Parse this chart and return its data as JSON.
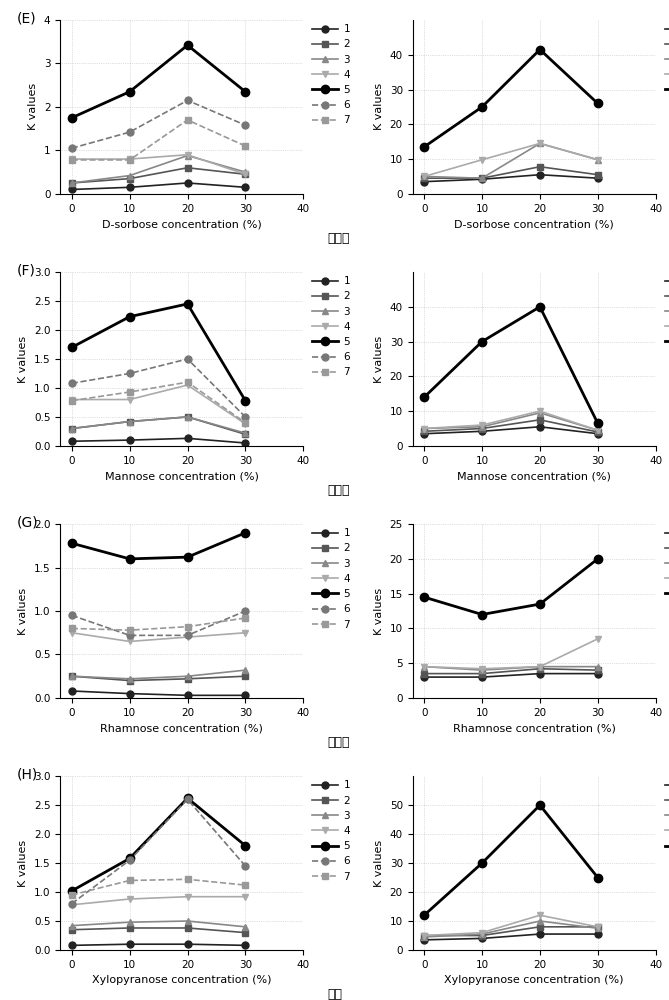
{
  "x": [
    0,
    10,
    20,
    30
  ],
  "panels": {
    "E_left": {
      "label": "(E)",
      "xlabel": "D-sorbose concentration (%)",
      "ylabel": "K values",
      "ylim": [
        0,
        4
      ],
      "yticks": [
        0,
        1,
        2,
        3,
        4
      ],
      "series": {
        "1": [
          0.1,
          0.15,
          0.25,
          0.15
        ],
        "2": [
          0.25,
          0.35,
          0.6,
          0.45
        ],
        "3": [
          0.25,
          0.42,
          0.88,
          0.5
        ],
        "4": [
          0.8,
          0.8,
          0.9,
          0.45
        ],
        "5": [
          1.75,
          2.35,
          3.42,
          2.35
        ],
        "6": [
          1.05,
          1.42,
          2.15,
          1.58
        ],
        "7": [
          0.78,
          0.78,
          1.7,
          1.1
        ]
      }
    },
    "E_right": {
      "xlabel": "D-sorbose concentration (%)",
      "ylabel": "K values",
      "ylim": [
        0,
        50
      ],
      "yticks": [
        0,
        10,
        20,
        30,
        40
      ],
      "chinese_label": "山梨糖",
      "series": {
        "8": [
          3.5,
          4.2,
          5.5,
          4.5
        ],
        "9": [
          4.5,
          4.5,
          7.8,
          5.5
        ],
        "10": [
          5.0,
          4.5,
          14.5,
          9.8
        ],
        "11": [
          5.0,
          9.8,
          14.5,
          9.8
        ],
        "12": [
          13.5,
          25.0,
          41.5,
          26.0
        ]
      }
    },
    "F_left": {
      "label": "(F)",
      "xlabel": "Mannose concentration (%)",
      "ylabel": "K values",
      "ylim": [
        0,
        3.0
      ],
      "yticks": [
        0.0,
        0.5,
        1.0,
        1.5,
        2.0,
        2.5,
        3.0
      ],
      "series": {
        "1": [
          0.08,
          0.1,
          0.13,
          0.05
        ],
        "2": [
          0.3,
          0.42,
          0.5,
          0.2
        ],
        "3": [
          0.3,
          0.42,
          0.5,
          0.22
        ],
        "4": [
          0.8,
          0.8,
          1.05,
          0.38
        ],
        "5": [
          1.7,
          2.23,
          2.45,
          0.78
        ],
        "6": [
          1.08,
          1.25,
          1.5,
          0.5
        ],
        "7": [
          0.78,
          0.93,
          1.1,
          0.4
        ]
      }
    },
    "F_right": {
      "xlabel": "Mannose concentration (%)",
      "ylabel": "K values",
      "ylim": [
        0,
        50
      ],
      "yticks": [
        0,
        10,
        20,
        30,
        40
      ],
      "chinese_label": "甘露糖",
      "series": {
        "8": [
          3.5,
          4.2,
          5.5,
          3.5
        ],
        "9": [
          4.2,
          5.0,
          7.5,
          4.0
        ],
        "10": [
          5.0,
          5.5,
          9.5,
          4.5
        ],
        "11": [
          5.0,
          6.0,
          10.0,
          4.5
        ],
        "12": [
          14.0,
          30.0,
          40.0,
          6.5
        ]
      }
    },
    "G_left": {
      "label": "(G)",
      "xlabel": "Rhamnose concentration (%)",
      "ylabel": "K values",
      "ylim": [
        0,
        2.0
      ],
      "yticks": [
        0.0,
        0.5,
        1.0,
        1.5,
        2.0
      ],
      "series": {
        "1": [
          0.08,
          0.05,
          0.03,
          0.03
        ],
        "2": [
          0.25,
          0.2,
          0.22,
          0.25
        ],
        "3": [
          0.25,
          0.22,
          0.25,
          0.32
        ],
        "4": [
          0.75,
          0.65,
          0.7,
          0.75
        ],
        "5": [
          1.78,
          1.6,
          1.62,
          1.9
        ],
        "6": [
          0.95,
          0.72,
          0.72,
          1.0
        ],
        "7": [
          0.8,
          0.78,
          0.82,
          0.92
        ]
      }
    },
    "G_right": {
      "xlabel": "Rhamnose concentration (%)",
      "ylabel": "K values",
      "ylim": [
        0,
        25
      ],
      "yticks": [
        0,
        5,
        10,
        15,
        20,
        25
      ],
      "chinese_label": "鼠李糖",
      "series": {
        "8": [
          3.0,
          3.0,
          3.5,
          3.5
        ],
        "9": [
          3.5,
          3.5,
          4.2,
          4.0
        ],
        "10": [
          4.5,
          4.0,
          4.5,
          4.5
        ],
        "11": [
          4.5,
          4.2,
          4.5,
          8.5
        ],
        "12": [
          14.5,
          12.0,
          13.5,
          20.0
        ]
      }
    },
    "H_left": {
      "label": "(H)",
      "xlabel": "Xylopyranose concentration (%)",
      "ylabel": "K values",
      "ylim": [
        0,
        3.0
      ],
      "yticks": [
        0.0,
        0.5,
        1.0,
        1.5,
        2.0,
        2.5,
        3.0
      ],
      "series": {
        "1": [
          0.08,
          0.1,
          0.1,
          0.08
        ],
        "2": [
          0.35,
          0.38,
          0.38,
          0.3
        ],
        "3": [
          0.42,
          0.48,
          0.5,
          0.4
        ],
        "4": [
          0.78,
          0.88,
          0.92,
          0.92
        ],
        "5": [
          1.02,
          1.58,
          2.62,
          1.8
        ],
        "6": [
          0.8,
          1.55,
          2.6,
          1.45
        ],
        "7": [
          0.95,
          1.2,
          1.22,
          1.12
        ]
      }
    },
    "H_right": {
      "xlabel": "Xylopyranose concentration (%)",
      "ylabel": "K values",
      "ylim": [
        0,
        60
      ],
      "yticks": [
        0,
        10,
        20,
        30,
        40,
        50
      ],
      "chinese_label": "木糖",
      "series": {
        "8": [
          3.5,
          4.0,
          5.5,
          5.5
        ],
        "9": [
          5.0,
          5.0,
          8.0,
          8.0
        ],
        "10": [
          4.5,
          5.5,
          10.0,
          7.5
        ],
        "11": [
          5.0,
          6.0,
          12.0,
          8.0
        ],
        "12": [
          12.0,
          30.0,
          50.0,
          25.0
        ]
      }
    }
  },
  "markers": {
    "1": {
      "marker": "o",
      "color": "#222222",
      "linestyle": "-",
      "markersize": 5
    },
    "2": {
      "marker": "s",
      "color": "#555555",
      "linestyle": "-",
      "markersize": 5
    },
    "3": {
      "marker": "^",
      "color": "#888888",
      "linestyle": "-",
      "markersize": 5
    },
    "4": {
      "marker": "v",
      "color": "#aaaaaa",
      "linestyle": "-",
      "markersize": 5
    },
    "5": {
      "marker": "o",
      "color": "#000000",
      "linestyle": "-",
      "markersize": 6,
      "linewidth": 2
    },
    "6": {
      "marker": "o",
      "color": "#777777",
      "linestyle": "--",
      "markersize": 5
    },
    "7": {
      "marker": "s",
      "color": "#999999",
      "linestyle": "--",
      "markersize": 5
    },
    "8": {
      "marker": "o",
      "color": "#222222",
      "linestyle": "-",
      "markersize": 5
    },
    "9": {
      "marker": "s",
      "color": "#555555",
      "linestyle": "-",
      "markersize": 5
    },
    "10": {
      "marker": "^",
      "color": "#888888",
      "linestyle": "-",
      "markersize": 5
    },
    "11": {
      "marker": "v",
      "color": "#aaaaaa",
      "linestyle": "-",
      "markersize": 5
    },
    "12": {
      "marker": "o",
      "color": "#000000",
      "linestyle": "-",
      "markersize": 6,
      "linewidth": 2
    }
  }
}
